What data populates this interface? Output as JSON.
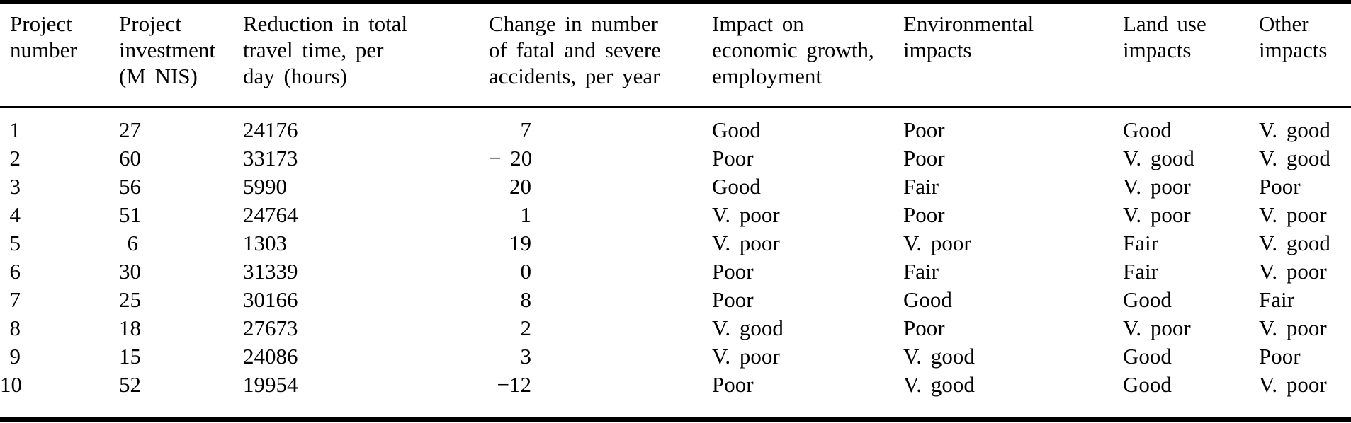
{
  "table": {
    "colors": {
      "text": "#000000",
      "background": "#ffffff",
      "rule": "#000000"
    },
    "columns": [
      {
        "id": "project-number",
        "label": "Project number",
        "lines": [
          "Project",
          "number"
        ]
      },
      {
        "id": "project-investment",
        "label": "Project investment (M NIS)",
        "lines": [
          "Project",
          "investment",
          "(M NIS)"
        ]
      },
      {
        "id": "travel-time-reduction",
        "label": "Reduction in total travel time, per day (hours)",
        "lines": [
          "Reduction in total",
          "travel time, per",
          "day (hours)"
        ]
      },
      {
        "id": "accident-change",
        "label": "Change in number of fatal and severe accidents, per year",
        "lines": [
          "Change in number",
          "of fatal and severe",
          "accidents, per year"
        ]
      },
      {
        "id": "economic-impact",
        "label": "Impact on economic growth, employment",
        "lines": [
          "Impact on",
          "economic growth,",
          "employment"
        ]
      },
      {
        "id": "environmental-impacts",
        "label": "Environmental impacts",
        "lines": [
          "Environmental",
          "impacts"
        ]
      },
      {
        "id": "land-use-impacts",
        "label": "Land use impacts",
        "lines": [
          "Land use",
          "impacts"
        ]
      },
      {
        "id": "other-impacts",
        "label": "Other impacts",
        "lines": [
          "Other",
          "impacts"
        ]
      }
    ],
    "rows": [
      [
        "1",
        "27",
        "24176",
        "7",
        "Good",
        "Poor",
        "Good",
        "V. good"
      ],
      [
        "2",
        "60",
        "33173",
        "− 20",
        "Poor",
        "Poor",
        "V. good",
        "V. good"
      ],
      [
        "3",
        "56",
        "5990",
        "20",
        "Good",
        "Fair",
        "V. poor",
        "Poor"
      ],
      [
        "4",
        "51",
        "24764",
        "1",
        "V. poor",
        "Poor",
        "V. poor",
        "V. poor"
      ],
      [
        "5",
        "6",
        "1303",
        "19",
        "V. poor",
        "V. poor",
        "Fair",
        "V. good"
      ],
      [
        "6",
        "30",
        "31339",
        "0",
        "Poor",
        "Fair",
        "Fair",
        "V. poor"
      ],
      [
        "7",
        "25",
        "30166",
        "8",
        "Poor",
        "Good",
        "Good",
        "Fair"
      ],
      [
        "8",
        "18",
        "27673",
        "2",
        "V. good",
        "Poor",
        "V. poor",
        "V. poor"
      ],
      [
        "9",
        "15",
        "24086",
        "3",
        "V. poor",
        "V. good",
        "Good",
        "Poor"
      ],
      [
        "10",
        "52",
        "19954",
        "−12",
        "Poor",
        "V. good",
        "Good",
        "V. poor"
      ]
    ]
  }
}
